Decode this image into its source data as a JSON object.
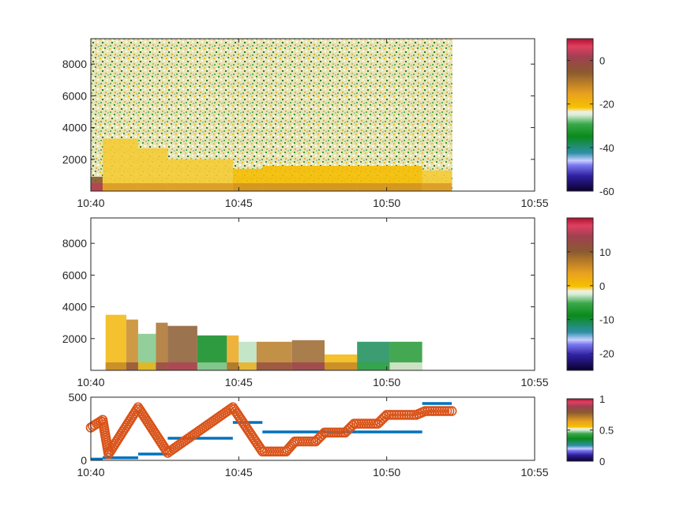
{
  "chart_data": [
    {
      "type": "heatmap",
      "title": "",
      "xlabel": "",
      "ylabel": "",
      "xlim": [
        "10:40",
        "10:55"
      ],
      "x_ticks": [
        "10:40",
        "10:45",
        "10:50",
        "10:55"
      ],
      "ylim": [
        0,
        9600
      ],
      "y_ticks": [
        "2000",
        "4000",
        "6000",
        "8000"
      ],
      "data_x_end": "10:52",
      "colorbar": {
        "range": [
          -60,
          10
        ],
        "ticks": [
          "0",
          "-20",
          "-40",
          "-60"
        ]
      },
      "bands": [
        {
          "t0": "10:40.0",
          "t1": "10:40.4",
          "h": 900,
          "v": -5
        },
        {
          "t0": "10:40.4",
          "t1": "10:41.6",
          "h": 3300,
          "v": -22
        },
        {
          "t0": "10:41.6",
          "t1": "10:42.6",
          "h": 2700,
          "v": -22
        },
        {
          "t0": "10:42.6",
          "t1": "10:44.8",
          "h": 2000,
          "v": -22
        },
        {
          "t0": "10:44.8",
          "t1": "10:45.8",
          "h": 1400,
          "v": -21
        },
        {
          "t0": "10:45.8",
          "t1": "10:49.0",
          "h": 1600,
          "v": -21
        },
        {
          "t0": "10:49.0",
          "t1": "10:51.2",
          "h": 1600,
          "v": -21
        },
        {
          "t0": "10:51.2",
          "t1": "10:52.2",
          "h": 1300,
          "v": -22
        }
      ]
    },
    {
      "type": "heatmap",
      "title": "",
      "xlabel": "",
      "ylabel": "",
      "xlim": [
        "10:40",
        "10:55"
      ],
      "x_ticks": [
        "10:40",
        "10:45",
        "10:50",
        "10:55"
      ],
      "ylim": [
        0,
        9600
      ],
      "y_ticks": [
        "2000",
        "4000",
        "6000",
        "8000"
      ],
      "colorbar": {
        "range": [
          -25,
          20
        ],
        "ticks": [
          "10",
          "0",
          "-10",
          "-20"
        ]
      },
      "bands": [
        {
          "t0": "10:40.5",
          "t1": "10:41.2",
          "h": 3500,
          "v": 1
        },
        {
          "t0": "10:41.2",
          "t1": "10:41.6",
          "h": 3200,
          "v": 6
        },
        {
          "t0": "10:41.6",
          "t1": "10:42.2",
          "h": 2300,
          "v": -4
        },
        {
          "t0": "10:42.2",
          "t1": "10:42.6",
          "h": 3000,
          "v": 8
        },
        {
          "t0": "10:42.6",
          "t1": "10:43.6",
          "h": 2800,
          "v": 10
        },
        {
          "t0": "10:43.6",
          "t1": "10:44.6",
          "h": 2200,
          "v": -9
        },
        {
          "t0": "10:44.6",
          "t1": "10:45.0",
          "h": 2200,
          "v": 3
        },
        {
          "t0": "10:45.0",
          "t1": "10:45.6",
          "h": 1800,
          "v": -3
        },
        {
          "t0": "10:45.6",
          "t1": "10:46.8",
          "h": 1800,
          "v": 7
        },
        {
          "t0": "10:46.8",
          "t1": "10:47.9",
          "h": 1900,
          "v": 9
        },
        {
          "t0": "10:47.9",
          "t1": "10:49.0",
          "h": 1000,
          "v": 1
        },
        {
          "t0": "10:49.0",
          "t1": "10:50.1",
          "h": 1800,
          "v": -11
        },
        {
          "t0": "10:50.1",
          "t1": "10:51.2",
          "h": 1800,
          "v": -7
        }
      ]
    },
    {
      "type": "scatter",
      "title": "",
      "xlabel": "",
      "ylabel": "",
      "xlim": [
        "10:40",
        "10:55"
      ],
      "x_ticks": [
        "10:40",
        "10:45",
        "10:50",
        "10:55"
      ],
      "ylim": [
        0,
        500
      ],
      "y_ticks": [
        "0",
        "500"
      ],
      "colorbar": {
        "range": [
          0,
          1
        ],
        "ticks": [
          "1",
          "0.5",
          "0"
        ]
      },
      "series": [
        {
          "color": "#0072BD",
          "style": "steps",
          "points": [
            {
              "t0": "10:40.0",
              "t1": "10:40.4",
              "y": 10
            },
            {
              "t0": "10:40.4",
              "t1": "10:41.6",
              "y": 20
            },
            {
              "t0": "10:41.6",
              "t1": "10:42.6",
              "y": 50
            },
            {
              "t0": "10:42.6",
              "t1": "10:44.8",
              "y": 175
            },
            {
              "t0": "10:44.8",
              "t1": "10:45.8",
              "y": 300
            },
            {
              "t0": "10:45.8",
              "t1": "10:49.0",
              "y": 225
            },
            {
              "t0": "10:49.0",
              "t1": "10:51.2",
              "y": 225
            },
            {
              "t0": "10:51.2",
              "t1": "10:52.2",
              "y": 450
            }
          ]
        },
        {
          "color": "#D95319",
          "style": "markers",
          "points": [
            {
              "t": "10:40.0",
              "y": 260
            },
            {
              "t": "10:40.4",
              "y": 320
            },
            {
              "t": "10:40.6",
              "y": 50
            },
            {
              "t": "10:41.6",
              "y": 420
            },
            {
              "t": "10:42.6",
              "y": 60
            },
            {
              "t": "10:44.8",
              "y": 420
            },
            {
              "t": "10:45.8",
              "y": 70
            },
            {
              "t": "10:46.6",
              "y": 70
            },
            {
              "t": "10:46.9",
              "y": 150
            },
            {
              "t": "10:47.6",
              "y": 150
            },
            {
              "t": "10:47.9",
              "y": 220
            },
            {
              "t": "10:48.6",
              "y": 220
            },
            {
              "t": "10:48.9",
              "y": 290
            },
            {
              "t": "10:49.7",
              "y": 290
            },
            {
              "t": "10:50.0",
              "y": 360
            },
            {
              "t": "10:51.0",
              "y": 360
            },
            {
              "t": "10:51.3",
              "y": 390
            },
            {
              "t": "10:52.2",
              "y": 390
            }
          ]
        }
      ]
    }
  ]
}
